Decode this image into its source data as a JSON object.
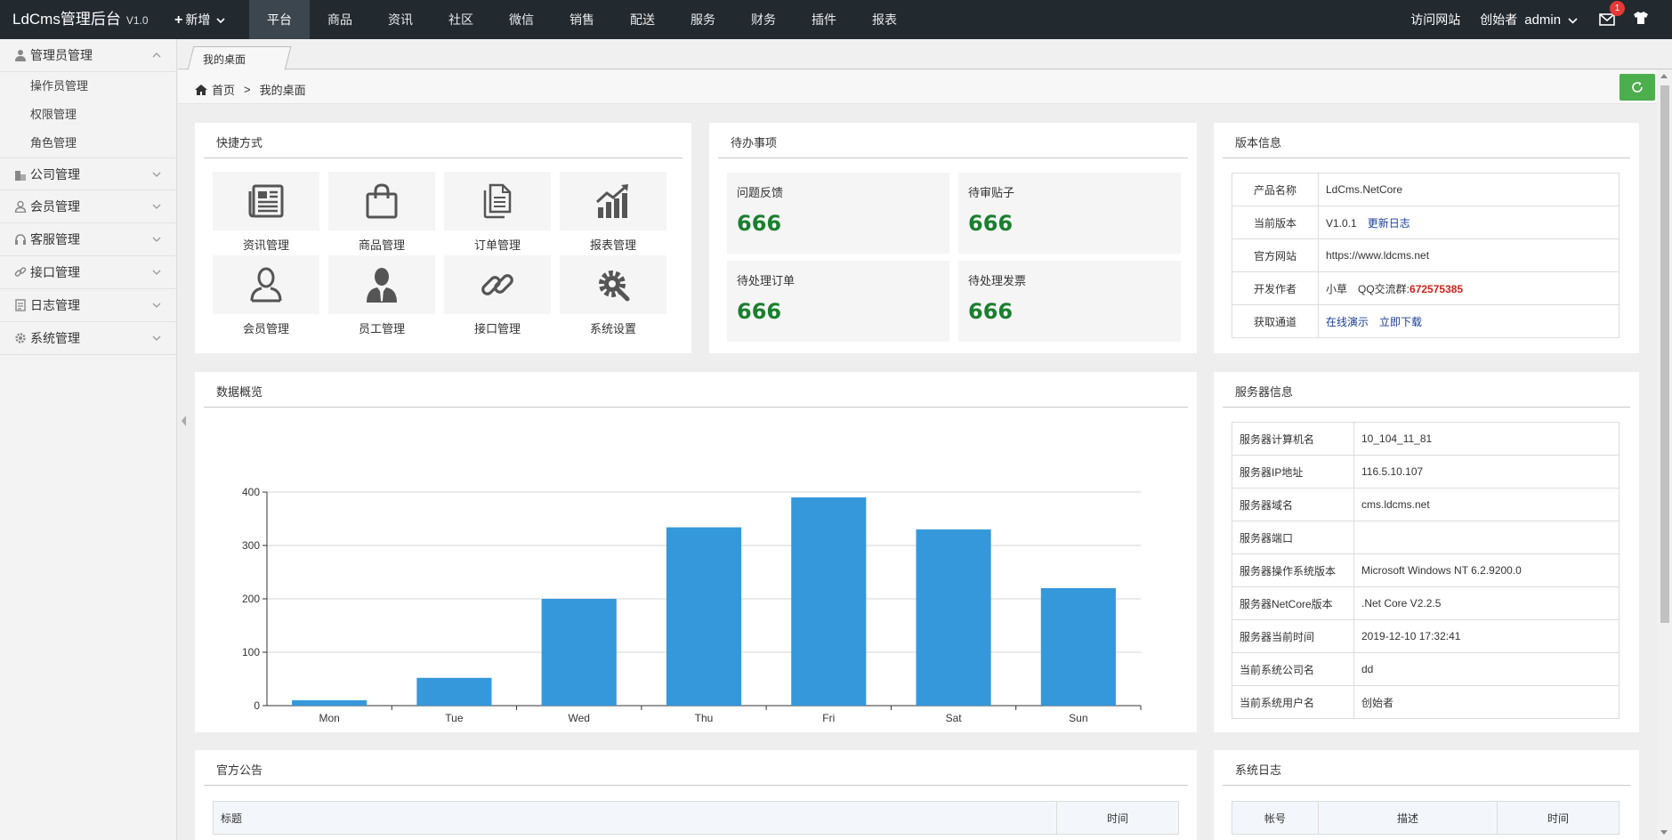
{
  "header": {
    "brand": "LdCms管理后台",
    "version": "V1.0",
    "new_label": "新增",
    "nav": [
      "平台",
      "商品",
      "资讯",
      "社区",
      "微信",
      "销售",
      "配送",
      "服务",
      "财务",
      "插件",
      "报表"
    ],
    "active_nav": "平台",
    "visit_site": "访问网站",
    "role": "创始者",
    "username": "admin",
    "mail_count": "1"
  },
  "sidebar": {
    "groups": [
      {
        "label": "管理员管理",
        "icon": "user-icon",
        "expanded": true,
        "children": [
          "操作员管理",
          "权限管理",
          "角色管理"
        ]
      },
      {
        "label": "公司管理",
        "icon": "building-icon"
      },
      {
        "label": "会员管理",
        "icon": "member-icon"
      },
      {
        "label": "客服管理",
        "icon": "headset-icon"
      },
      {
        "label": "接口管理",
        "icon": "link-icon"
      },
      {
        "label": "日志管理",
        "icon": "log-icon"
      },
      {
        "label": "系统管理",
        "icon": "gear-icon"
      }
    ]
  },
  "tabs": {
    "active": "我的桌面"
  },
  "breadcrumb": {
    "home": "首页",
    "sep": ">",
    "current": "我的桌面"
  },
  "shortcuts": {
    "title": "快捷方式",
    "items": [
      {
        "label": "资讯管理",
        "icon": "newspaper-icon"
      },
      {
        "label": "商品管理",
        "icon": "shopping-bag-icon"
      },
      {
        "label": "订单管理",
        "icon": "document-copy-icon"
      },
      {
        "label": "报表管理",
        "icon": "bar-chart-up-icon"
      },
      {
        "label": "会员管理",
        "icon": "member-outline-icon"
      },
      {
        "label": "员工管理",
        "icon": "employee-icon"
      },
      {
        "label": "接口管理",
        "icon": "chain-link-icon"
      },
      {
        "label": "系统设置",
        "icon": "settings-gear-icon"
      }
    ]
  },
  "todo": {
    "title": "待办事项",
    "items": [
      {
        "label": "问题反馈",
        "value": "666"
      },
      {
        "label": "待审贴子",
        "value": "666"
      },
      {
        "label": "待处理订单",
        "value": "666"
      },
      {
        "label": "待处理发票",
        "value": "666"
      }
    ]
  },
  "version_info": {
    "title": "版本信息",
    "product_label": "产品名称",
    "product_value": "LdCms.NetCore",
    "version_label": "当前版本",
    "version_value": "V1.0.1",
    "changelog_link": "更新日志",
    "site_label": "官方网站",
    "site_value": "https://www.ldcms.net",
    "author_label": "开发作者",
    "author_value": "小草",
    "qq_label": "QQ交流群:",
    "qq_value": "672575385",
    "get_label": "获取通道",
    "demo_link": "在线演示",
    "download_link": "立即下载"
  },
  "overview": {
    "title": "数据概览"
  },
  "chart_data": {
    "type": "bar",
    "categories": [
      "Mon",
      "Tue",
      "Wed",
      "Thu",
      "Fri",
      "Sat",
      "Sun"
    ],
    "values": [
      10,
      52,
      200,
      334,
      390,
      330,
      220
    ],
    "ylim": [
      0,
      400
    ],
    "yticks": [
      0,
      100,
      200,
      300,
      400
    ],
    "grid": true,
    "color": "#3498db"
  },
  "server_info": {
    "title": "服务器信息",
    "rows": [
      {
        "k": "服务器计算机名",
        "v": "10_104_11_81"
      },
      {
        "k": "服务器IP地址",
        "v": "116.5.10.107"
      },
      {
        "k": "服务器域名",
        "v": "cms.ldcms.net"
      },
      {
        "k": "服务器端口",
        "v": ""
      },
      {
        "k": "服务器操作系统版本",
        "v": "Microsoft Windows NT 6.2.9200.0"
      },
      {
        "k": "服务器NetCore版本",
        "v": ".Net Core V2.2.5"
      },
      {
        "k": "服务器当前时间",
        "v": "2019-12-10 17:32:41"
      },
      {
        "k": "当前系统公司名",
        "v": "dd"
      },
      {
        "k": "当前系统用户名",
        "v": "创始者"
      }
    ]
  },
  "announcements": {
    "title": "官方公告",
    "col_title": "标题",
    "col_time": "时间"
  },
  "syslog": {
    "title": "系统日志",
    "col_account": "帐号",
    "col_desc": "描述",
    "col_time": "时间"
  },
  "colors": {
    "topbar": "#222a30",
    "accent_green": "#1a7f2e",
    "refresh": "#4cae4c",
    "bar": "#3498db",
    "qq": "#d0211c"
  }
}
